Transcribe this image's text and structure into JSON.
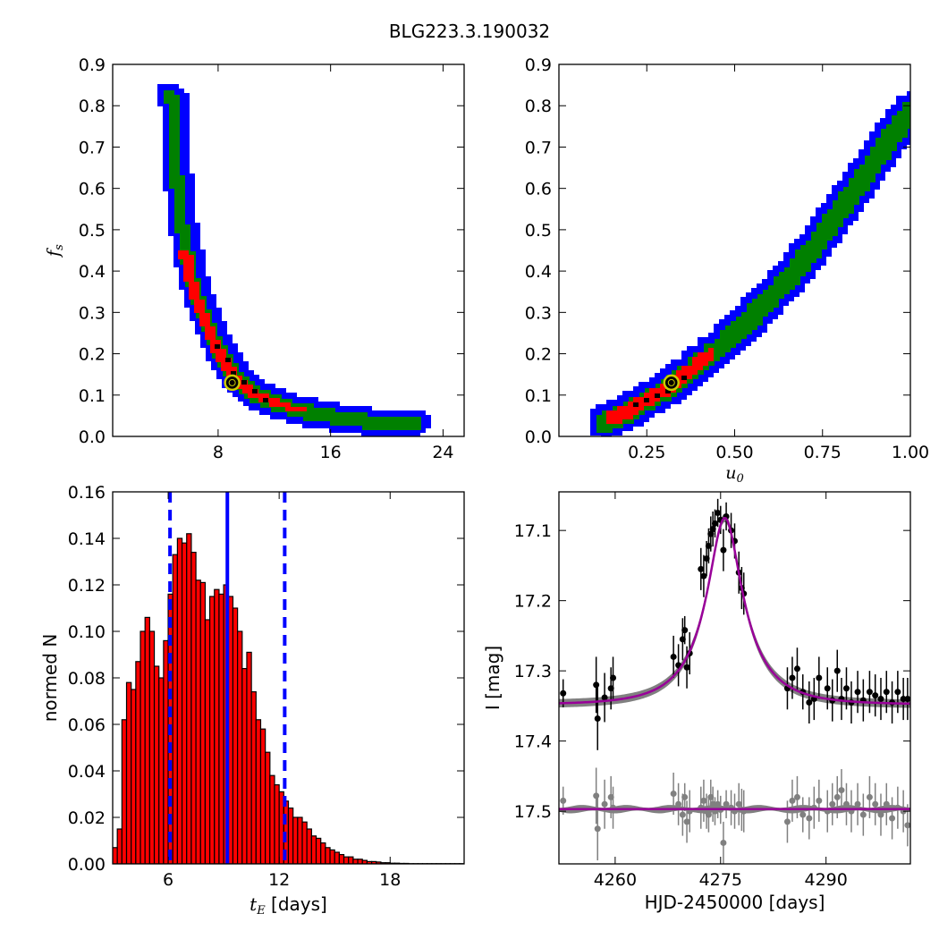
{
  "figure": {
    "title": "BLG223.3.190032"
  },
  "chart_data": [
    {
      "type": "heatmap",
      "panel": "top-left",
      "ylabel": "f_s",
      "xlabel": "",
      "xlim": [
        0.5,
        25.5
      ],
      "ylim": [
        0.0,
        0.9
      ],
      "xticks": [
        8,
        16,
        24
      ],
      "yticks": [
        0.0,
        0.1,
        0.2,
        0.3,
        0.4,
        0.5,
        0.6,
        0.7,
        0.8,
        0.9
      ],
      "colors": {
        "outer": "#0000ff",
        "middle": "#008000",
        "inner": "#ff0000",
        "core": "#000000"
      },
      "ridge": [
        [
          4.5,
          0.83
        ],
        [
          4.8,
          0.65
        ],
        [
          5.3,
          0.5
        ],
        [
          6.0,
          0.38
        ],
        [
          6.8,
          0.3
        ],
        [
          7.8,
          0.22
        ],
        [
          9.0,
          0.15
        ],
        [
          10.5,
          0.11
        ],
        [
          12.5,
          0.08
        ],
        [
          15.0,
          0.06
        ],
        [
          18.0,
          0.045
        ],
        [
          22.0,
          0.035
        ]
      ],
      "best_fit": {
        "x": 9.0,
        "y": 0.13
      }
    },
    {
      "type": "heatmap",
      "panel": "top-right",
      "ylabel": "",
      "xlabel": "u_0",
      "xlim": [
        0.0,
        1.0
      ],
      "ylim": [
        0.0,
        0.9
      ],
      "xticks": [
        0.25,
        0.5,
        0.75,
        1.0
      ],
      "xticklabels": [
        "0.25",
        "0.50",
        "0.75",
        "1.00"
      ],
      "yticks": [
        0.0,
        0.1,
        0.2,
        0.3,
        0.4,
        0.5,
        0.6,
        0.7,
        0.8,
        0.9
      ],
      "colors": {
        "outer": "#0000ff",
        "middle": "#008000",
        "inner": "#ff0000",
        "core": "#000000"
      },
      "ridge": [
        [
          0.12,
          0.04
        ],
        [
          0.2,
          0.07
        ],
        [
          0.28,
          0.11
        ],
        [
          0.35,
          0.15
        ],
        [
          0.45,
          0.22
        ],
        [
          0.55,
          0.3
        ],
        [
          0.65,
          0.39
        ],
        [
          0.75,
          0.5
        ],
        [
          0.85,
          0.62
        ],
        [
          0.93,
          0.72
        ],
        [
          1.0,
          0.8
        ]
      ],
      "best_fit": {
        "x": 0.32,
        "y": 0.13
      }
    },
    {
      "type": "bar",
      "panel": "bottom-left",
      "xlabel": "t_E [days]",
      "ylabel": "normed N",
      "xlim": [
        3,
        22
      ],
      "ylim": [
        0.0,
        0.16
      ],
      "xticks": [
        6,
        12,
        18
      ],
      "yticks": [
        0.0,
        0.02,
        0.04,
        0.06,
        0.08,
        0.1,
        0.12,
        0.14,
        0.16
      ],
      "yticklabels": [
        "0.00",
        "0.02",
        "0.04",
        "0.06",
        "0.08",
        "0.10",
        "0.12",
        "0.14",
        "0.16"
      ],
      "bin_start": 3.0,
      "bin_width": 0.25,
      "values": [
        0.007,
        0.015,
        0.062,
        0.078,
        0.075,
        0.087,
        0.1,
        0.106,
        0.1,
        0.085,
        0.08,
        0.096,
        0.116,
        0.133,
        0.14,
        0.138,
        0.142,
        0.134,
        0.122,
        0.121,
        0.105,
        0.115,
        0.118,
        0.116,
        0.12,
        0.115,
        0.11,
        0.1,
        0.084,
        0.091,
        0.074,
        0.062,
        0.058,
        0.048,
        0.038,
        0.034,
        0.031,
        0.027,
        0.024,
        0.02,
        0.02,
        0.018,
        0.015,
        0.012,
        0.011,
        0.009,
        0.007,
        0.006,
        0.005,
        0.004,
        0.003,
        0.003,
        0.002,
        0.002,
        0.0015,
        0.001,
        0.001,
        0.0008,
        0.0005,
        0.0005,
        0.0003,
        0.0003,
        0.0002,
        0.0002,
        0.0001,
        0.0001,
        0.0001,
        0.0001,
        0.0001,
        0.0001,
        0.0001,
        0.0001,
        0.0001,
        0.0001,
        0.0001,
        0.0001
      ],
      "bar_color": "#ff0000",
      "vlines": [
        {
          "x": 6.1,
          "style": "dashed",
          "color": "#0000ff"
        },
        {
          "x": 9.2,
          "style": "solid",
          "color": "#0000ff"
        },
        {
          "x": 12.3,
          "style": "dashed",
          "color": "#0000ff"
        }
      ]
    },
    {
      "type": "scatter",
      "panel": "bottom-right",
      "xlabel": "HJD-2450000 [days]",
      "ylabel": "I [mag]",
      "xlim": [
        4252,
        4302
      ],
      "ylim": [
        17.575,
        17.045
      ],
      "y_inverted": true,
      "xticks": [
        4260,
        4275,
        4290
      ],
      "yticks": [
        17.1,
        17.2,
        17.3,
        17.4,
        17.5
      ],
      "model": {
        "t0": 4275.6,
        "tE": 3.5,
        "baseline": 17.348,
        "peak": 17.082,
        "color": "#990099",
        "band_color": "#808080"
      },
      "residual_baseline": 17.497,
      "data_points": [
        [
          4252.6,
          17.332,
          0.02
        ],
        [
          4257.3,
          17.32,
          0.04
        ],
        [
          4257.5,
          17.368,
          0.045
        ],
        [
          4258.5,
          17.338,
          0.035
        ],
        [
          4259.4,
          17.325,
          0.03
        ],
        [
          4259.7,
          17.31,
          0.03
        ],
        [
          4268.3,
          17.28,
          0.03
        ],
        [
          4269.0,
          17.292,
          0.03
        ],
        [
          4269.6,
          17.255,
          0.03
        ],
        [
          4269.9,
          17.242,
          0.02
        ],
        [
          4270.2,
          17.295,
          0.03
        ],
        [
          4270.6,
          17.275,
          0.03
        ],
        [
          4272.2,
          17.155,
          0.03
        ],
        [
          4272.6,
          17.165,
          0.03
        ],
        [
          4273.0,
          17.14,
          0.025
        ],
        [
          4273.3,
          17.122,
          0.025
        ],
        [
          4273.6,
          17.105,
          0.025
        ],
        [
          4273.9,
          17.098,
          0.025
        ],
        [
          4274.2,
          17.09,
          0.02
        ],
        [
          4274.6,
          17.075,
          0.02
        ],
        [
          4275.0,
          17.085,
          0.02
        ],
        [
          4275.4,
          17.128,
          0.03
        ],
        [
          4275.8,
          17.08,
          0.02
        ],
        [
          4276.5,
          17.1,
          0.025
        ],
        [
          4277.0,
          17.115,
          0.025
        ],
        [
          4277.6,
          17.16,
          0.03
        ],
        [
          4278.0,
          17.182,
          0.03
        ],
        [
          4278.3,
          17.19,
          0.03
        ],
        [
          4284.5,
          17.325,
          0.03
        ],
        [
          4285.2,
          17.31,
          0.03
        ],
        [
          4285.9,
          17.297,
          0.03
        ],
        [
          4286.7,
          17.33,
          0.025
        ],
        [
          4287.6,
          17.345,
          0.03
        ],
        [
          4288.3,
          17.34,
          0.03
        ],
        [
          4289.0,
          17.31,
          0.03
        ],
        [
          4290.2,
          17.325,
          0.03
        ],
        [
          4290.9,
          17.342,
          0.03
        ],
        [
          4291.6,
          17.3,
          0.03
        ],
        [
          4292.2,
          17.34,
          0.03
        ],
        [
          4292.9,
          17.325,
          0.03
        ],
        [
          4293.6,
          17.345,
          0.03
        ],
        [
          4294.5,
          17.33,
          0.03
        ],
        [
          4295.3,
          17.342,
          0.03
        ],
        [
          4296.2,
          17.33,
          0.03
        ],
        [
          4297.0,
          17.335,
          0.03
        ],
        [
          4297.8,
          17.34,
          0.03
        ],
        [
          4298.6,
          17.33,
          0.03
        ],
        [
          4299.4,
          17.345,
          0.03
        ],
        [
          4300.2,
          17.33,
          0.03
        ],
        [
          4301.0,
          17.34,
          0.03
        ],
        [
          4301.6,
          17.34,
          0.03
        ]
      ],
      "residual_points": [
        [
          4252.6,
          17.485,
          0.02
        ],
        [
          4257.3,
          17.478,
          0.04
        ],
        [
          4257.5,
          17.525,
          0.045
        ],
        [
          4258.5,
          17.49,
          0.035
        ],
        [
          4259.4,
          17.48,
          0.03
        ],
        [
          4259.7,
          17.495,
          0.03
        ],
        [
          4268.3,
          17.475,
          0.03
        ],
        [
          4269.0,
          17.49,
          0.03
        ],
        [
          4269.6,
          17.505,
          0.03
        ],
        [
          4269.9,
          17.48,
          0.02
        ],
        [
          4270.2,
          17.515,
          0.03
        ],
        [
          4270.6,
          17.5,
          0.03
        ],
        [
          4272.2,
          17.495,
          0.03
        ],
        [
          4272.6,
          17.485,
          0.03
        ],
        [
          4273.0,
          17.5,
          0.025
        ],
        [
          4273.3,
          17.505,
          0.025
        ],
        [
          4273.6,
          17.48,
          0.025
        ],
        [
          4273.9,
          17.49,
          0.025
        ],
        [
          4274.2,
          17.5,
          0.02
        ],
        [
          4274.6,
          17.49,
          0.02
        ],
        [
          4275.0,
          17.498,
          0.02
        ],
        [
          4275.4,
          17.545,
          0.03
        ],
        [
          4275.8,
          17.49,
          0.02
        ],
        [
          4276.5,
          17.495,
          0.025
        ],
        [
          4277.0,
          17.5,
          0.025
        ],
        [
          4277.6,
          17.49,
          0.03
        ],
        [
          4278.0,
          17.498,
          0.03
        ],
        [
          4278.3,
          17.5,
          0.03
        ],
        [
          4284.5,
          17.515,
          0.03
        ],
        [
          4285.2,
          17.485,
          0.03
        ],
        [
          4285.9,
          17.48,
          0.03
        ],
        [
          4286.7,
          17.505,
          0.025
        ],
        [
          4287.6,
          17.51,
          0.03
        ],
        [
          4288.3,
          17.495,
          0.03
        ],
        [
          4289.0,
          17.485,
          0.03
        ],
        [
          4290.2,
          17.5,
          0.03
        ],
        [
          4290.9,
          17.49,
          0.03
        ],
        [
          4291.6,
          17.48,
          0.03
        ],
        [
          4292.2,
          17.47,
          0.03
        ],
        [
          4292.9,
          17.49,
          0.03
        ],
        [
          4293.6,
          17.5,
          0.03
        ],
        [
          4294.5,
          17.49,
          0.03
        ],
        [
          4295.3,
          17.505,
          0.03
        ],
        [
          4296.2,
          17.48,
          0.03
        ],
        [
          4297.0,
          17.49,
          0.03
        ],
        [
          4297.8,
          17.505,
          0.03
        ],
        [
          4298.6,
          17.49,
          0.03
        ],
        [
          4299.4,
          17.51,
          0.03
        ],
        [
          4300.2,
          17.495,
          0.03
        ],
        [
          4301.0,
          17.5,
          0.03
        ],
        [
          4301.6,
          17.52,
          0.03
        ]
      ]
    }
  ]
}
